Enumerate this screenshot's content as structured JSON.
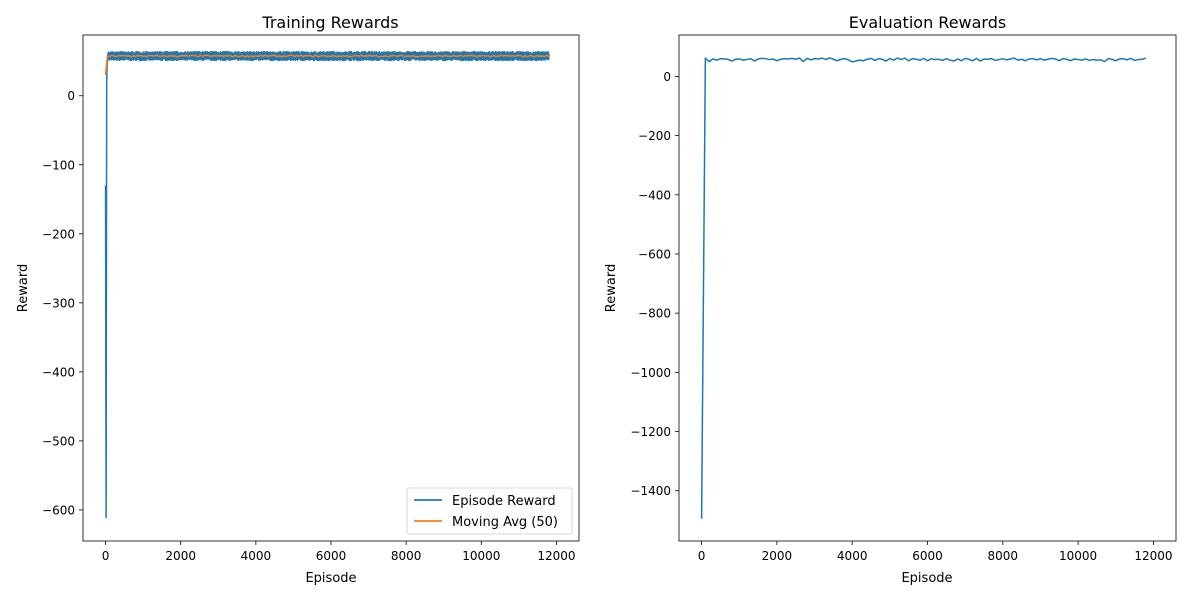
{
  "chart_data": [
    {
      "type": "line",
      "title": "Training Rewards",
      "xlabel": "Episode",
      "ylabel": "Reward",
      "xlim": [
        -600,
        12600
      ],
      "ylim": [
        -645,
        88
      ],
      "xticks": [
        0,
        2000,
        4000,
        6000,
        8000,
        10000,
        12000
      ],
      "xtick_labels": [
        "0",
        "2000",
        "4000",
        "6000",
        "8000",
        "10000",
        "12000"
      ],
      "yticks": [
        0,
        -100,
        -200,
        -300,
        -400,
        -500,
        -600
      ],
      "ytick_labels": [
        "0",
        "−100",
        "−200",
        "−300",
        "−400",
        "−500",
        "−600"
      ],
      "grid": false,
      "legend_position": "lower-right",
      "series": [
        {
          "name": "Episode Reward",
          "color": "#1f77b4",
          "x_range": [
            0,
            11800
          ],
          "initial_points": [
            [
              0,
              -130
            ],
            [
              15,
              -611
            ],
            [
              30,
              20
            ],
            [
              50,
              58
            ]
          ],
          "band_low": 51,
          "band_high": 64
        },
        {
          "name": "Moving Avg (50)",
          "color": "#ff7f0e",
          "x_range": [
            0,
            11800
          ],
          "initial_points": [
            [
              0,
              30
            ],
            [
              25,
              45
            ],
            [
              50,
              57
            ]
          ],
          "level": 57.5,
          "wobble": 1.2
        }
      ]
    },
    {
      "type": "line",
      "title": "Evaluation Rewards",
      "xlabel": "Episode",
      "ylabel": "Reward",
      "xlim": [
        -600,
        12600
      ],
      "ylim": [
        -1570,
        140
      ],
      "xticks": [
        0,
        2000,
        4000,
        6000,
        8000,
        10000,
        12000
      ],
      "xtick_labels": [
        "0",
        "2000",
        "4000",
        "6000",
        "8000",
        "10000",
        "12000"
      ],
      "yticks": [
        0,
        -200,
        -400,
        -600,
        -800,
        -1000,
        -1200,
        -1400
      ],
      "ytick_labels": [
        "0",
        "−200",
        "−400",
        "−600",
        "−800",
        "−1000",
        "−1200",
        "−1400"
      ],
      "grid": false,
      "series": [
        {
          "color": "#1f77b4",
          "x": [
            0,
            100,
            200,
            300,
            400,
            500,
            600,
            700,
            800,
            900,
            1000,
            1100,
            1200,
            1300,
            1400,
            1500,
            1600,
            1700,
            1800,
            1900,
            2000,
            2100,
            2200,
            2300,
            2400,
            2500,
            2600,
            2700,
            2800,
            2900,
            3000,
            3100,
            3200,
            3300,
            3400,
            3500,
            3600,
            3700,
            3800,
            3900,
            4000,
            4100,
            4200,
            4300,
            4400,
            4500,
            4600,
            4700,
            4800,
            4900,
            5000,
            5100,
            5200,
            5300,
            5400,
            5500,
            5600,
            5700,
            5800,
            5900,
            6000,
            6100,
            6200,
            6300,
            6400,
            6500,
            6600,
            6700,
            6800,
            6900,
            7000,
            7100,
            7200,
            7300,
            7400,
            7500,
            7600,
            7700,
            7800,
            7900,
            8000,
            8100,
            8200,
            8300,
            8400,
            8500,
            8600,
            8700,
            8800,
            8900,
            9000,
            9100,
            9200,
            9300,
            9400,
            9500,
            9600,
            9700,
            9800,
            9900,
            10000,
            10100,
            10200,
            10300,
            10400,
            10500,
            10600,
            10700,
            10800,
            10900,
            11000,
            11100,
            11200,
            11300,
            11400,
            11500,
            11600,
            11700,
            11800
          ],
          "values": [
            -1495,
            62,
            50,
            59,
            55,
            60,
            59,
            58,
            52,
            58,
            59,
            55,
            57,
            60,
            52,
            59,
            61,
            60,
            57,
            59,
            53,
            58,
            60,
            59,
            61,
            58,
            62,
            50,
            61,
            56,
            60,
            59,
            62,
            57,
            63,
            58,
            53,
            58,
            60,
            56,
            49,
            52,
            55,
            53,
            58,
            61,
            54,
            60,
            58,
            52,
            61,
            55,
            62,
            57,
            62,
            53,
            60,
            58,
            55,
            61,
            53,
            60,
            57,
            58,
            54,
            60,
            55,
            52,
            59,
            53,
            61,
            58,
            53,
            61,
            52,
            59,
            58,
            60,
            54,
            57,
            60,
            56,
            59,
            62,
            55,
            58,
            53,
            59,
            60,
            56,
            60,
            55,
            58,
            61,
            59,
            53,
            60,
            58,
            53,
            59,
            57,
            55,
            59,
            54,
            57,
            55,
            56,
            50,
            60,
            58,
            53,
            59,
            60,
            56,
            61,
            54,
            57,
            58,
            62
          ]
        }
      ]
    }
  ]
}
